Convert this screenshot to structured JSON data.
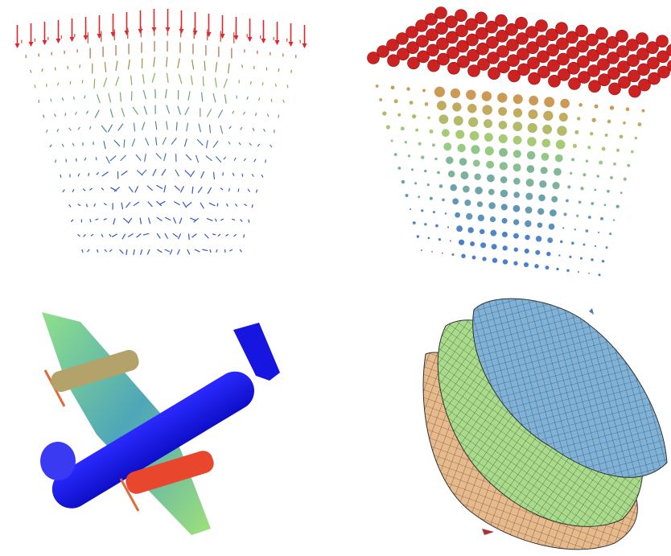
{
  "panels": [
    {
      "id": "vector-field",
      "kind": "3D arrow glyph field",
      "colors": {
        "top": "#e0262a",
        "middle": "#7fbf5a",
        "bottom": "#3355cc"
      }
    },
    {
      "id": "sphere-field",
      "kind": "3D sphere glyph lattice",
      "colors": {
        "top": "#cc2222",
        "middle": "#d98a4a",
        "low": "#9fd47a",
        "bottom": "#4a7fd0"
      }
    },
    {
      "id": "airplane",
      "kind": "shaded 3D airplane model",
      "colors": {
        "fuselage": "#1a1aee",
        "wing_top": "#8fe08a",
        "wing_mid": "#4fa6b8",
        "engine_upper": "#b3a36a",
        "engine_lower": "#e8472e",
        "propeller": "#e06a3a"
      }
    },
    {
      "id": "nested-shells",
      "kind": "nested mesh surfaces",
      "colors": {
        "outer": "#e8b98a",
        "middle": "#a8dc8a",
        "inner": "#7fb2d8",
        "mesh": "#222222"
      }
    }
  ]
}
